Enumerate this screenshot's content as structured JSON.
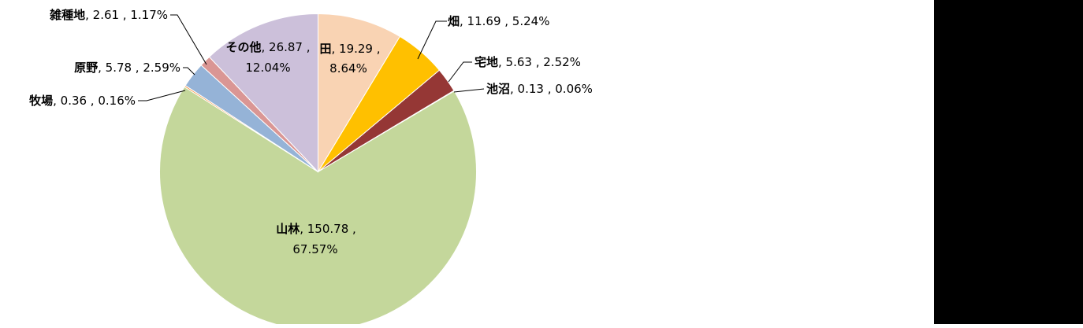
{
  "chart_data": {
    "type": "pie",
    "title": "",
    "start_angle_deg": 0,
    "direction": "clockwise",
    "slices": [
      {
        "name": "田",
        "value": 19.29,
        "percent": "8.64%",
        "value_text": "19.29",
        "color": "#F9D3B3"
      },
      {
        "name": "畑",
        "value": 11.69,
        "percent": "5.24%",
        "value_text": "11.69",
        "color": "#FFC000"
      },
      {
        "name": "宅地",
        "value": 5.63,
        "percent": "2.52%",
        "value_text": "5.63",
        "color": "#953735"
      },
      {
        "name": "池沼",
        "value": 0.13,
        "percent": "0.06%",
        "value_text": "0.13",
        "color": "#4BACC6"
      },
      {
        "name": "山林",
        "value": 150.78,
        "percent": "67.57%",
        "value_text": "150.78",
        "color": "#C4D79B"
      },
      {
        "name": "牧場",
        "value": 0.36,
        "percent": "0.16%",
        "value_text": "0.36",
        "color": "#F79646"
      },
      {
        "name": "原野",
        "value": 5.78,
        "percent": "2.59%",
        "value_text": "5.78",
        "color": "#95B3D7"
      },
      {
        "name": "雑種地",
        "value": 2.61,
        "percent": "1.17%",
        "value_text": "2.61",
        "color": "#DA9694"
      },
      {
        "name": "その他",
        "value": 26.87,
        "percent": "12.04%",
        "value_text": "26.87",
        "color": "#CCC0DA"
      }
    ]
  }
}
